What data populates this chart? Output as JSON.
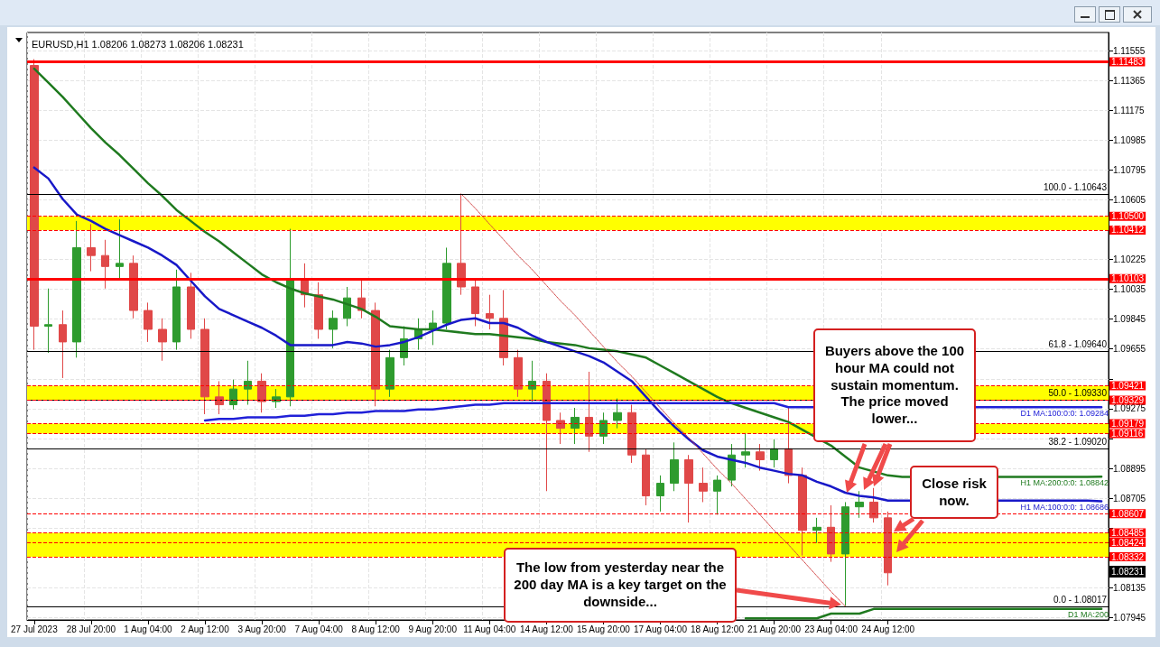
{
  "chart_data": {
    "type": "candlestick",
    "title": "EURUSD,H1 1.08206 1.08273 1.08206 1.08231",
    "categories": [
      "27 Jul 2023",
      null,
      null,
      null,
      "28 Jul 20:00",
      null,
      null,
      null,
      "1 Aug 04:00",
      null,
      null,
      null,
      "2 Aug 12:00",
      null,
      null,
      null,
      "3 Aug 20:00",
      null,
      null,
      null,
      "7 Aug 04:00",
      null,
      null,
      null,
      "8 Aug 12:00",
      null,
      null,
      null,
      "9 Aug 20:00",
      null,
      null,
      null,
      "11 Aug 04:00",
      null,
      null,
      null,
      "14 Aug 12:00",
      null,
      null,
      null,
      "15 Aug 20:00",
      null,
      null,
      null,
      "17 Aug 04:00",
      null,
      null,
      null,
      "18 Aug 12:00",
      null,
      null,
      null,
      "21 Aug 20:00",
      null,
      null,
      null,
      "23 Aug 04:00",
      null,
      null,
      null,
      "24 Aug 12:00",
      null,
      null,
      null,
      null,
      null,
      null,
      null,
      null,
      null,
      null,
      null,
      null,
      null,
      null,
      null
    ],
    "series": [
      {
        "type": "candlestick",
        "ohlc": [
          [
            1.1146,
            1.115,
            1.0965,
            1.098
          ],
          [
            1.098,
            1.1004,
            1.0963,
            1.0981
          ],
          [
            1.0981,
            1.099,
            1.0947,
            1.097
          ],
          [
            1.097,
            1.1047,
            1.096,
            1.103
          ],
          [
            1.103,
            1.1045,
            1.1015,
            1.1025
          ],
          [
            1.1025,
            1.1035,
            1.1004,
            1.1018
          ],
          [
            1.1018,
            1.1048,
            1.101,
            1.102
          ],
          [
            1.102,
            1.1025,
            1.0985,
            1.099
          ],
          [
            1.099,
            1.0995,
            1.097,
            1.0978
          ],
          [
            1.0978,
            1.0985,
            1.0958,
            1.097
          ],
          [
            1.097,
            1.1016,
            1.0965,
            1.1005
          ],
          [
            1.1005,
            1.1014,
            1.0972,
            1.0978
          ],
          [
            1.0978,
            1.0985,
            1.0924,
            1.0935
          ],
          [
            1.0935,
            1.0945,
            1.0924,
            1.093
          ],
          [
            1.093,
            1.0946,
            1.0927,
            1.094
          ],
          [
            1.094,
            1.0958,
            1.093,
            1.0945
          ],
          [
            1.0945,
            1.095,
            1.0925,
            1.0932
          ],
          [
            1.0932,
            1.094,
            1.0928,
            1.0935
          ],
          [
            1.0935,
            1.1042,
            1.0929,
            1.101
          ],
          [
            1.101,
            1.102,
            1.0992,
            1.1
          ],
          [
            1.1,
            1.1008,
            1.0972,
            1.0978
          ],
          [
            1.0978,
            1.099,
            1.0966,
            1.0985
          ],
          [
            1.0985,
            1.1005,
            1.098,
            1.0998
          ],
          [
            1.0998,
            1.101,
            1.0985,
            1.099
          ],
          [
            1.099,
            1.0995,
            1.0929,
            1.094
          ],
          [
            1.094,
            1.0965,
            1.0935,
            1.096
          ],
          [
            1.096,
            1.098,
            1.0955,
            1.0972
          ],
          [
            1.0972,
            1.0985,
            1.0965,
            1.0978
          ],
          [
            1.0978,
            1.099,
            1.0968,
            1.0982
          ],
          [
            1.0982,
            1.103,
            1.0978,
            1.102
          ],
          [
            1.102,
            1.1064,
            1.1,
            1.1005
          ],
          [
            1.1005,
            1.101,
            1.098,
            1.0988
          ],
          [
            1.0988,
            1.1,
            1.0978,
            1.0985
          ],
          [
            1.0985,
            1.1003,
            1.0955,
            1.096
          ],
          [
            1.096,
            1.0965,
            1.0935,
            1.094
          ],
          [
            1.094,
            1.0958,
            1.0932,
            1.0945
          ],
          [
            1.0945,
            1.095,
            1.0875,
            1.092
          ],
          [
            1.092,
            1.0925,
            1.0905,
            1.0915
          ],
          [
            1.0915,
            1.0928,
            1.0905,
            1.0922
          ],
          [
            1.0922,
            1.0951,
            1.09,
            1.091
          ],
          [
            1.091,
            1.0925,
            1.0905,
            1.092
          ],
          [
            1.092,
            1.0934,
            1.0915,
            1.0925
          ],
          [
            1.0925,
            1.093,
            1.0893,
            1.0898
          ],
          [
            1.0898,
            1.0902,
            1.0866,
            1.0872
          ],
          [
            1.0872,
            1.0885,
            1.0862,
            1.088
          ],
          [
            1.088,
            1.0906,
            1.0875,
            1.0895
          ],
          [
            1.0895,
            1.0898,
            1.0855,
            1.088
          ],
          [
            1.088,
            1.089,
            1.0868,
            1.0875
          ],
          [
            1.0875,
            1.0885,
            1.086,
            1.0882
          ],
          [
            1.0882,
            1.0905,
            1.0878,
            1.0898
          ],
          [
            1.0898,
            1.0912,
            1.089,
            1.09
          ],
          [
            1.09,
            1.0905,
            1.0888,
            1.0895
          ],
          [
            1.0895,
            1.0908,
            1.089,
            1.0902
          ],
          [
            1.0902,
            1.0929,
            1.088,
            1.0885
          ],
          [
            1.0885,
            1.089,
            1.0834,
            1.085
          ],
          [
            1.085,
            1.0858,
            1.0842,
            1.0852
          ],
          [
            1.0852,
            1.0866,
            1.083,
            1.0835
          ],
          [
            1.0835,
            1.0868,
            1.0802,
            1.0865
          ],
          [
            1.0865,
            1.0875,
            1.0858,
            1.0868
          ],
          [
            1.0868,
            1.0877,
            1.0855,
            1.0858
          ],
          [
            1.0858,
            1.0862,
            1.0815,
            1.0823
          ],
          null,
          null,
          null,
          null,
          null,
          null,
          null,
          null,
          null,
          null,
          null,
          null,
          null,
          null,
          null
        ]
      },
      {
        "type": "line",
        "name": "H1 MA:200:0:0: 1.08842",
        "color": "#1f7a1f",
        "values": [
          1.1144,
          1.1135,
          1.1126,
          1.1116,
          1.1106,
          1.1097,
          1.1089,
          1.108,
          1.1071,
          1.1063,
          1.1054,
          1.1047,
          1.104,
          1.1034,
          1.1027,
          1.102,
          1.1013,
          1.1008,
          1.1004,
          1.1001,
          1.0999,
          1.0997,
          1.0994,
          1.0991,
          1.0986,
          1.098,
          1.0979,
          1.0978,
          1.0978,
          1.0977,
          1.0976,
          1.0975,
          1.0975,
          1.0974,
          1.0973,
          1.0972,
          1.097,
          1.0969,
          1.0968,
          1.0966,
          1.0965,
          1.0964,
          1.0962,
          1.096,
          1.0955,
          1.095,
          1.0945,
          1.094,
          1.0935,
          1.0931,
          1.0928,
          1.0925,
          1.0922,
          1.0919,
          1.0914,
          null,
          1.0904,
          1.0897,
          1.089,
          null,
          1.0885,
          1.0884,
          null,
          null,
          null,
          null,
          null,
          null,
          null,
          1.0884,
          1.0884,
          1.0884,
          1.0884,
          1.0884,
          1.0884,
          1.08842
        ]
      },
      {
        "type": "line",
        "name": "H1 MA:100:0:0: 1.08686",
        "color": "#1818c8",
        "values": [
          1.1081,
          1.1074,
          1.1061,
          1.1051,
          1.1047,
          1.1042,
          1.1038,
          1.1034,
          1.103,
          1.1025,
          1.1019,
          1.1009,
          1.0999,
          1.0991,
          1.0987,
          1.0983,
          1.0979,
          1.0974,
          1.0968,
          1.0968,
          1.0968,
          1.0968,
          1.097,
          1.0969,
          1.0967,
          1.0968,
          1.097,
          1.0973,
          1.0977,
          1.0981,
          1.0984,
          1.0985,
          1.0982,
          1.0982,
          1.0979,
          1.0974,
          1.097,
          1.0967,
          1.0964,
          1.0961,
          1.0957,
          1.0951,
          1.0945,
          1.0935,
          1.0925,
          1.0916,
          1.0908,
          1.0901,
          1.0897,
          1.0895,
          1.0893,
          1.089,
          1.0888,
          1.0886,
          1.0885,
          1.0881,
          1.0878,
          1.0874,
          1.0872,
          1.0871,
          1.0869,
          1.0869,
          null,
          null,
          null,
          null,
          null,
          null,
          null,
          1.0869,
          1.0869,
          1.0869,
          1.0869,
          1.0869,
          1.0869,
          1.08686
        ]
      },
      {
        "type": "line",
        "name": "D1 MA:100:0:0: 1.09284",
        "color": "#2020d8",
        "values": [
          null,
          null,
          null,
          null,
          null,
          null,
          null,
          null,
          null,
          null,
          null,
          null,
          1.092,
          1.0921,
          1.0921,
          1.0922,
          1.0922,
          1.0922,
          1.0923,
          1.0923,
          1.0924,
          1.0924,
          1.0925,
          1.0925,
          1.0926,
          1.0926,
          1.0926,
          1.0927,
          1.0927,
          1.0928,
          1.0929,
          1.093,
          1.093,
          1.0931,
          1.0931,
          1.0931,
          1.0931,
          1.0931,
          1.0931,
          1.0931,
          1.0931,
          1.0931,
          1.0931,
          1.0931,
          1.0931,
          1.0931,
          1.0931,
          1.0931,
          1.0931,
          1.0931,
          1.0931,
          1.0931,
          1.0931,
          1.09284,
          1.09284,
          null,
          null,
          null,
          null,
          null,
          null,
          null,
          null,
          null,
          null,
          null,
          null,
          1.09284,
          1.09284,
          1.09284,
          1.09284,
          1.09284,
          1.09284,
          1.09284,
          1.09284,
          1.09284
        ]
      },
      {
        "type": "line",
        "name": "D1 MA:200",
        "color": "#1f7a1f",
        "values": [
          null,
          null,
          null,
          null,
          null,
          null,
          null,
          null,
          null,
          null,
          null,
          null,
          null,
          null,
          null,
          null,
          null,
          null,
          null,
          null,
          null,
          null,
          null,
          null,
          null,
          null,
          null,
          null,
          null,
          null,
          null,
          null,
          null,
          null,
          null,
          null,
          null,
          null,
          null,
          null,
          null,
          null,
          null,
          null,
          null,
          null,
          null,
          null,
          null,
          null,
          1.0794,
          1.0794,
          1.0794,
          1.0794,
          1.0794,
          1.0794,
          1.0797,
          1.0797,
          1.0797,
          1.08,
          1.08,
          1.08,
          1.08,
          1.08,
          1.08,
          1.08,
          1.08,
          1.08,
          1.08,
          1.08,
          1.08,
          1.08,
          1.08,
          1.08,
          1.08,
          1.08
        ]
      },
      {
        "type": "line",
        "color": "#d04040",
        "line_style": "dotted",
        "values": [
          null,
          null,
          null,
          null,
          null,
          null,
          null,
          null,
          null,
          null,
          null,
          null,
          null,
          null,
          null,
          null,
          null,
          null,
          null,
          null,
          null,
          null,
          null,
          null,
          null,
          null,
          null,
          null,
          null,
          null,
          1.10643,
          1.1055,
          1.1045,
          1.1035,
          1.1025,
          1.1016,
          1.1006,
          1.0996,
          1.0987,
          1.0977,
          1.0967,
          1.0957,
          1.0948,
          1.0938,
          1.0928,
          1.0918,
          1.0909,
          1.0899,
          1.0889,
          1.088,
          1.087,
          1.086,
          1.085,
          1.0841,
          1.0831,
          1.0821,
          1.0811,
          1.08017,
          null,
          null,
          null,
          null,
          null,
          null,
          null,
          null,
          null,
          null,
          null,
          null,
          null,
          null,
          null,
          null,
          null,
          null
        ]
      }
    ],
    "ylim": [
      1.0793,
      1.1167
    ],
    "yticks": [
      1.07945,
      1.08135,
      {
        "value": 1.08515,
        "label": null
      },
      1.08705,
      1.08895,
      {
        "value": 1.09085,
        "label": null
      },
      1.09275,
      {
        "value": 1.09465,
        "label": null
      },
      1.09655,
      1.09845,
      1.10035,
      1.10225,
      1.10605,
      1.10795,
      1.10985,
      1.11175,
      1.11365,
      1.11555
    ],
    "grid": true,
    "bands": [
      {
        "axis": "y",
        "from": 1.10412,
        "to": 1.105,
        "color": "#ffff00"
      },
      {
        "axis": "y",
        "from": 1.09329,
        "to": 1.09421,
        "color": "#ffff00"
      },
      {
        "axis": "y",
        "from": 1.09116,
        "to": 1.09179,
        "color": "#ffff00"
      },
      {
        "axis": "y",
        "from": 1.08332,
        "to": 1.08485,
        "color": "#ffff00"
      }
    ],
    "ref_lines": [
      {
        "axis": "y",
        "value": 1.10643,
        "color": "#000000"
      },
      {
        "axis": "y",
        "value": 1.0964,
        "color": "#000000"
      },
      {
        "axis": "y",
        "value": 1.0933,
        "color": "#000000"
      },
      {
        "axis": "y",
        "value": 1.0902,
        "color": "#000000"
      },
      {
        "axis": "y",
        "value": 1.08017,
        "color": "#000000"
      },
      {
        "axis": "y",
        "value": 1.11483,
        "label": "1.11483",
        "color": "#ff0000"
      },
      {
        "axis": "y",
        "value": 1.105,
        "label": "1.10500",
        "color": "#ff0000",
        "line_style": "dashed"
      },
      {
        "axis": "y",
        "value": 1.10412,
        "label": "1.10412",
        "color": "#ff0000",
        "line_style": "dashed"
      },
      {
        "axis": "y",
        "value": 1.10103,
        "label": "1.10103",
        "color": "#ff0000"
      },
      {
        "axis": "y",
        "value": 1.09421,
        "label": "1.09421",
        "color": "#ff0000",
        "line_style": "dashed"
      },
      {
        "axis": "y",
        "value": 1.09329,
        "label": "1.09329",
        "color": "#ff0000",
        "line_style": "dashed"
      },
      {
        "axis": "y",
        "value": 1.09179,
        "label": "1.09179",
        "color": "#ff0000",
        "line_style": "dashed"
      },
      {
        "axis": "y",
        "value": 1.09116,
        "label": "1.09116",
        "color": "#ff0000",
        "line_style": "dashed"
      },
      {
        "axis": "y",
        "value": 1.08607,
        "label": "1.08607",
        "color": "#ff0000",
        "line_style": "dashed"
      },
      {
        "axis": "y",
        "value": 1.08485,
        "label": "1.08485",
        "color": "#ff0000",
        "line_style": "dashed"
      },
      {
        "axis": "y",
        "value": 1.08424,
        "label": "1.08424",
        "color": "#ff0000",
        "line_style": "dashed"
      },
      {
        "axis": "y",
        "value": 1.08332,
        "label": "1.08332",
        "color": "#ff0000",
        "line_style": "dashed"
      }
    ],
    "annotations": [
      "Buyers above the 100 hour MA could not sustain momentum. The price moved lower...",
      "Close risk now.",
      "The low from yesterday near the 200 day MA is a key target on the downside...",
      "1.08231",
      "100.0 - 1.10643",
      "61.8 - 1.09640",
      "50.0 - 1.09330",
      "38.2 - 1.09020",
      "0.0 - 1.08017"
    ]
  }
}
